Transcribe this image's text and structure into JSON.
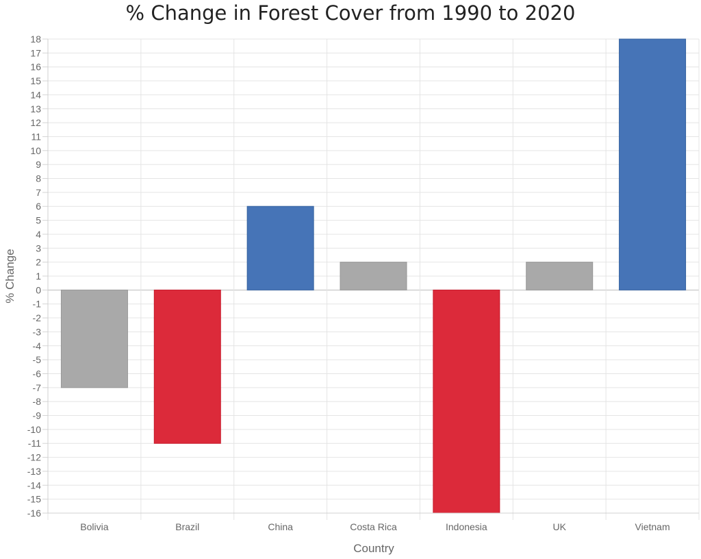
{
  "chart_data": {
    "type": "bar",
    "title": "% Change in Forest Cover from 1990 to 2020",
    "xlabel": "Country",
    "ylabel": "% Change",
    "categories": [
      "Bolivia",
      "Brazil",
      "China",
      "Costa Rica",
      "Indonesia",
      "UK",
      "Vietnam"
    ],
    "values": [
      -7,
      -11,
      6,
      2,
      -16,
      2,
      18
    ],
    "bar_colors": [
      "#a9a9a9",
      "#dc2a3a",
      "#4674b7",
      "#a9a9a9",
      "#dc2a3a",
      "#a9a9a9",
      "#4674b7"
    ],
    "ylim": [
      -16,
      18
    ],
    "ytick_step": 1,
    "grid": true,
    "legend": "none"
  }
}
